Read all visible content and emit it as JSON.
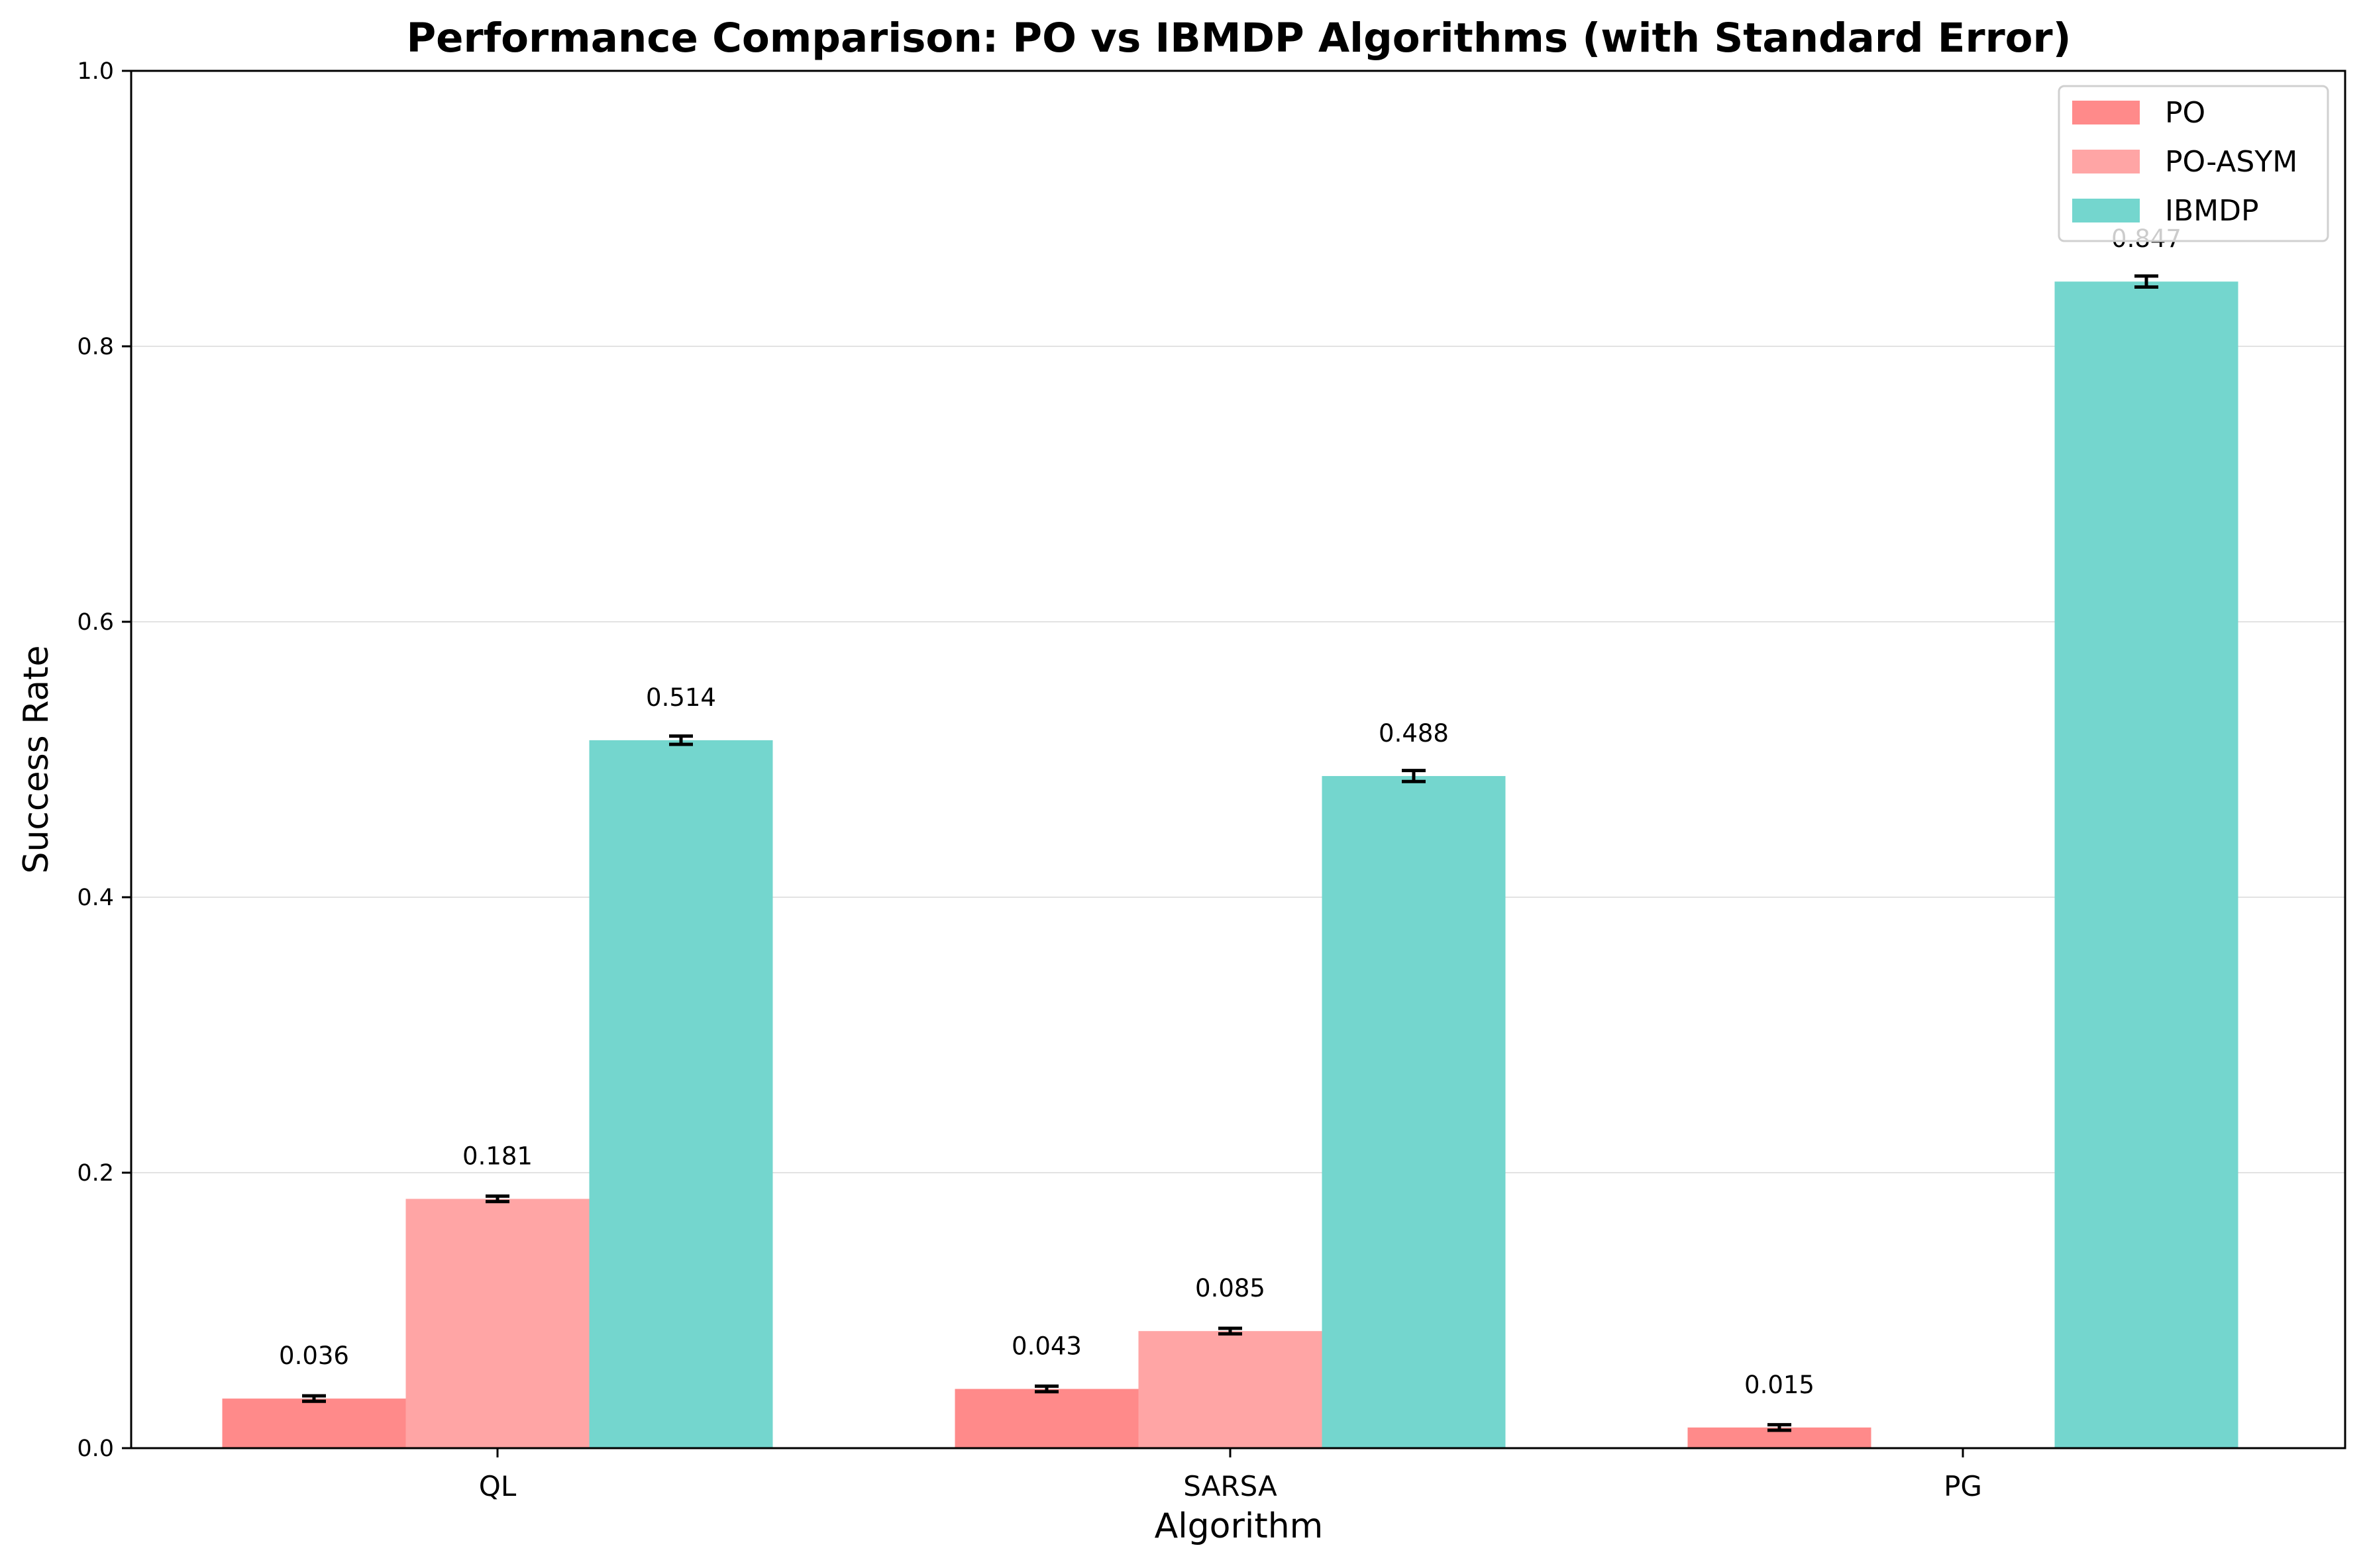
{
  "chart_data": {
    "type": "bar",
    "title": "Performance Comparison: PO vs IBMDP Algorithms (with Standard Error)",
    "xlabel": "Algorithm",
    "ylabel": "Success Rate",
    "ylim": [
      0,
      1.0
    ],
    "yticks": [
      "0.0",
      "0.2",
      "0.4",
      "0.6",
      "0.8",
      "1.0"
    ],
    "categories": [
      "QL",
      "SARSA",
      "PG"
    ],
    "grid": "horizontal",
    "legend_position": "top-right",
    "series": [
      {
        "name": "PO",
        "color": "#ff8a8a",
        "values": [
          0.036,
          0.043,
          0.015
        ],
        "errors": [
          0.002,
          0.002,
          0.002
        ],
        "labels": [
          "0.036",
          "0.043",
          "0.015"
        ]
      },
      {
        "name": "PO-ASYM",
        "color": "#ffa5a5",
        "values": [
          0.181,
          0.085,
          0.0
        ],
        "errors": [
          0.002,
          0.002,
          0.0
        ],
        "labels": [
          "0.181",
          "0.085",
          ""
        ]
      },
      {
        "name": "IBMDP",
        "color": "#74d6ce",
        "values": [
          0.514,
          0.488,
          0.847
        ],
        "errors": [
          0.003,
          0.004,
          0.004
        ],
        "labels": [
          "0.514",
          "0.488",
          "0.847"
        ]
      }
    ]
  }
}
